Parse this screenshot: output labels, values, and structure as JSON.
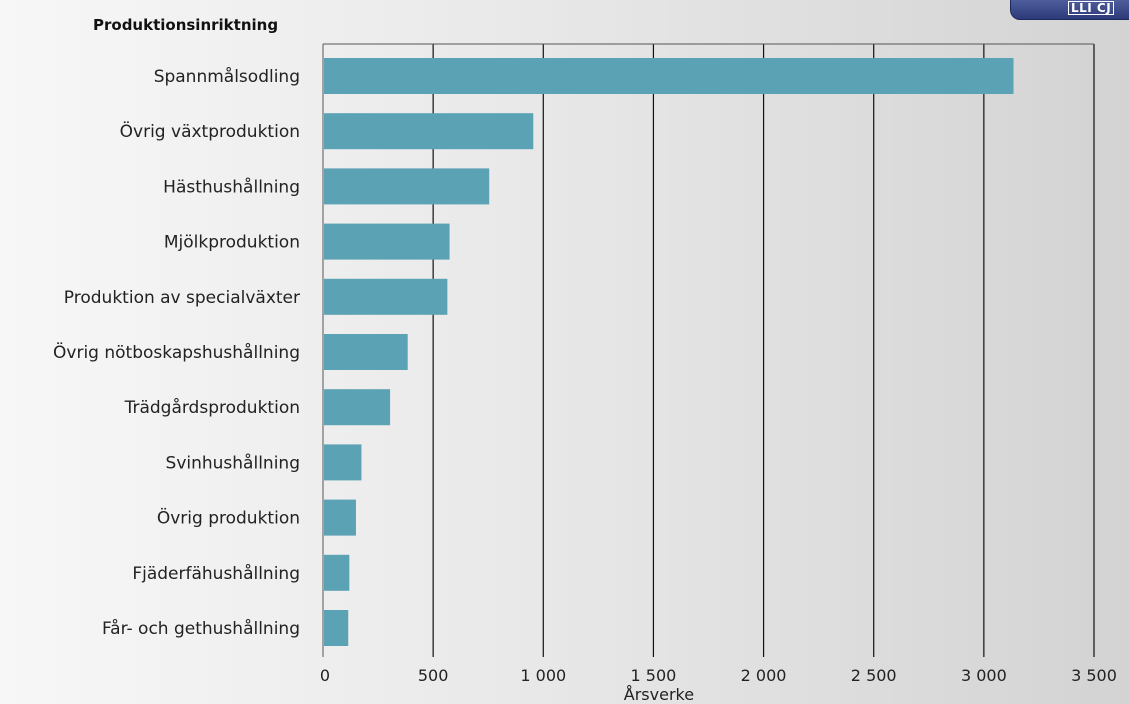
{
  "badge": {
    "text": "LLI CJ"
  },
  "chart_data": {
    "type": "bar",
    "orientation": "horizontal",
    "title": "Produktionsinriktning",
    "xlabel": "Årsverke",
    "ylabel": "",
    "categories": [
      "Spannmålsodling",
      "Övrig växtproduktion",
      "Hästhushållning",
      "Mjölkproduktion",
      "Produktion av specialväxter",
      "Övrig nötboskapshushållning",
      "Trädgårdsproduktion",
      "Svinhushållning",
      "Övrig produktion",
      "Fjäderfähushållning",
      "Får- och gethushållning"
    ],
    "values": [
      3130,
      950,
      750,
      570,
      560,
      380,
      300,
      170,
      145,
      115,
      110
    ],
    "xlim": [
      0,
      3500
    ],
    "xticks": [
      0,
      500,
      1000,
      1500,
      2000,
      2500,
      3000,
      3500
    ],
    "xtick_labels": [
      "0",
      "500",
      "1 000",
      "1 500",
      "2 000",
      "2 500",
      "3 000",
      "3 500"
    ],
    "grid": "vertical",
    "bar_color": "#5aa2b4",
    "grid_color": "#111111"
  }
}
